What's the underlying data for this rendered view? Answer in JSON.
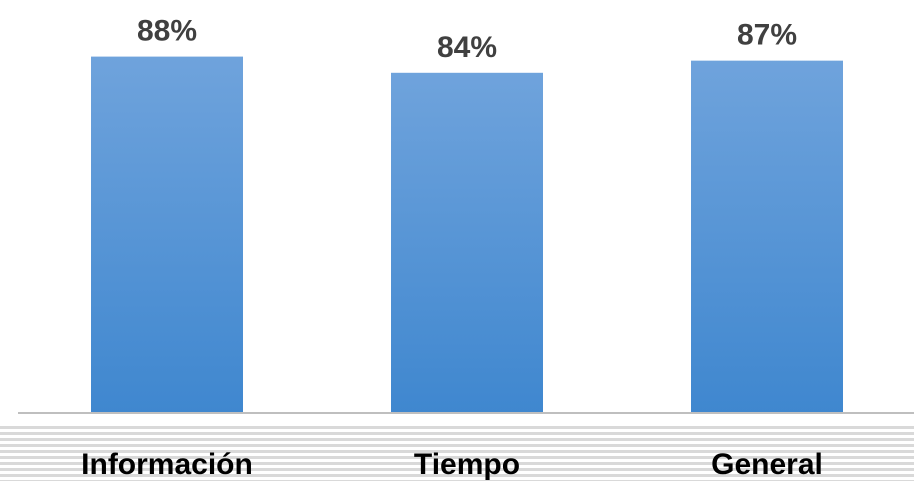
{
  "chart_data": {
    "type": "bar",
    "categories": [
      "Información",
      "Tiempo",
      "General"
    ],
    "values": [
      88,
      84,
      87
    ],
    "value_labels": [
      "88%",
      "84%",
      "87%"
    ],
    "title": "",
    "xlabel": "",
    "ylabel": "",
    "grid": false,
    "legend": "none",
    "colors": {
      "bar_top": "#6fa3dc",
      "bar_bottom": "#3f87cf",
      "axis": "#bfbfbf",
      "band": "#d9d9d9",
      "label": "#404040",
      "category_label": "#000000"
    }
  }
}
